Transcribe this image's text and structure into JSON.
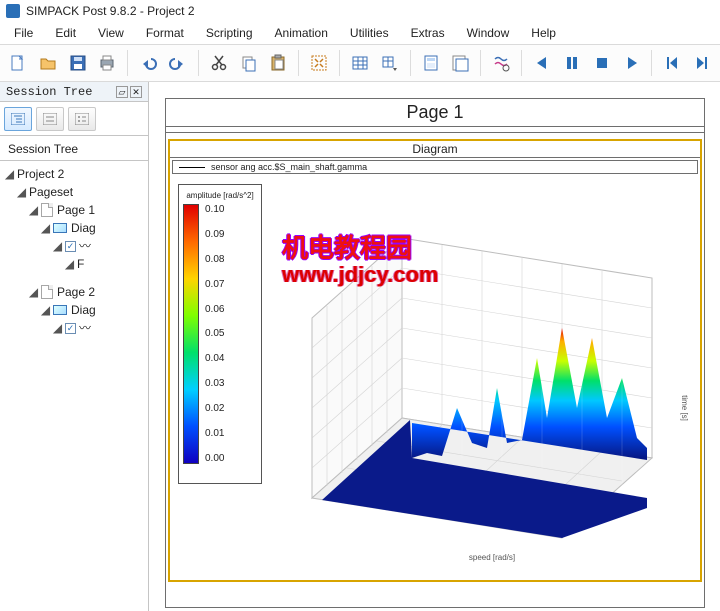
{
  "window": {
    "title": "SIMPACK Post 9.8.2 - Project 2"
  },
  "menu": [
    "File",
    "Edit",
    "View",
    "Format",
    "Scripting",
    "Animation",
    "Utilities",
    "Extras",
    "Window",
    "Help"
  ],
  "toolbar_icons": [
    "new-file-icon",
    "open-file-icon",
    "save-icon",
    "print-icon",
    "|",
    "undo-icon",
    "redo-icon",
    "|",
    "cut-icon",
    "copy-icon",
    "paste-icon",
    "|",
    "fit-view-icon",
    "|",
    "table-icon",
    "table-props-icon",
    "|",
    "page-layout-icon",
    "page-template-icon",
    "|",
    "filter-icon",
    "|",
    "play-back-icon",
    "pause-icon",
    "stop-icon",
    "play-fwd-icon",
    "|",
    "skip-back-icon",
    "skip-fwd-icon"
  ],
  "sidepanel": {
    "header": "Session Tree",
    "tree_root": "Session Tree",
    "project": "Project 2",
    "pageset": "Pageset",
    "page1": "Page 1",
    "diag1": "Diag",
    "f_node": "F",
    "page2": "Page 2",
    "diag2": "Diag"
  },
  "page": {
    "title": "Page 1",
    "diagram_label": "Diagram",
    "series_label": "sensor ang acc.$S_main_shaft.gamma"
  },
  "legend": {
    "title": "amplitude [rad/s^2]",
    "ticks": [
      "0.10",
      "0.09",
      "0.08",
      "0.07",
      "0.06",
      "0.05",
      "0.04",
      "0.03",
      "0.02",
      "0.01",
      "0.00"
    ],
    "gradient_colors": [
      "#e00000",
      "#ff6a00",
      "#ffd400",
      "#7fff00",
      "#00e06a",
      "#00d0ff",
      "#0050ff",
      "#1000c0"
    ]
  },
  "watermark": {
    "line1": "机电教程园",
    "line2": "www.jdjcy.com"
  },
  "chart3d": {
    "type": "surface-3d",
    "x_axis_label": "speed [rad/s]",
    "y_axis_label": "time [s]",
    "z_axis_label": "",
    "grid_color": "#bdbdbd",
    "face_color": "#ffffff",
    "floor_color": "#f0f0f0",
    "surface_colormap": [
      "#1000c0",
      "#0050ff",
      "#00d0ff",
      "#00e06a",
      "#7fff00",
      "#ffd400",
      "#ff6a00",
      "#e00000"
    ]
  }
}
